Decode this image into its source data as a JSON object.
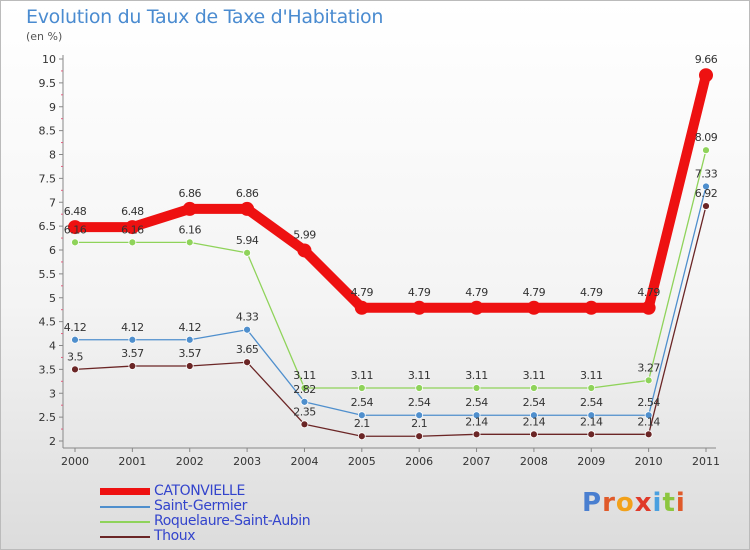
{
  "chart_data": {
    "type": "line",
    "title": "Evolution du Taux de Taxe d'Habitation",
    "subtitle": "(en %)",
    "x": [
      "2000",
      "2001",
      "2002",
      "2003",
      "2004",
      "2005",
      "2006",
      "2007",
      "2008",
      "2009",
      "2010",
      "2011"
    ],
    "ylim": [
      2,
      10
    ],
    "yticks": [
      "2",
      "2.5",
      "3",
      "3.5",
      "4",
      "4.5",
      "5",
      "5.5",
      "6",
      "6.5",
      "7",
      "7.5",
      "8",
      "8.5",
      "9",
      "9.5",
      "10"
    ],
    "grid": false,
    "legend_position": "bottom-left",
    "series": [
      {
        "name": "CATONVIELLE",
        "color": "#ee1111",
        "values": [
          6.48,
          6.48,
          6.86,
          6.86,
          5.99,
          4.79,
          4.79,
          4.79,
          4.79,
          4.79,
          4.79,
          9.66
        ],
        "labels": [
          "6.48",
          "6.48",
          "6.86",
          "6.86",
          "5.99",
          "4.79",
          "4.79",
          "4.79",
          "4.79",
          "4.79",
          "4.79",
          "9.66"
        ]
      },
      {
        "name": "Saint-Germier",
        "color": "#4f8fcd",
        "values": [
          4.12,
          4.12,
          4.12,
          4.33,
          2.82,
          2.54,
          2.54,
          2.54,
          2.54,
          2.54,
          2.54,
          7.33
        ],
        "labels": [
          "4.12",
          "4.12",
          "4.12",
          "4.33",
          "2.82",
          "2.54",
          "2.54",
          "2.54",
          "2.54",
          "2.54",
          "2.54",
          "7.33"
        ]
      },
      {
        "name": "Roquelaure-Saint-Aubin",
        "color": "#8fd35a",
        "values": [
          6.16,
          6.16,
          6.16,
          5.94,
          3.11,
          3.11,
          3.11,
          3.11,
          3.11,
          3.11,
          3.27,
          8.09
        ],
        "labels": [
          "6.16",
          "6.16",
          "6.16",
          "5.94",
          "3.11",
          "3.11",
          "3.11",
          "3.11",
          "3.11",
          "3.11",
          "3.27",
          "8.09"
        ]
      },
      {
        "name": "Thoux",
        "color": "#6b2626",
        "values": [
          3.5,
          3.57,
          3.57,
          3.65,
          2.35,
          2.1,
          2.1,
          2.14,
          2.14,
          2.14,
          2.14,
          6.92
        ],
        "labels": [
          "3.5",
          "3.57",
          "3.57",
          "3.65",
          "2.35",
          "2.1",
          "2.1",
          "2.14",
          "2.14",
          "2.14",
          "2.14",
          "6.92"
        ]
      }
    ]
  },
  "logo_text": "Proxiti"
}
